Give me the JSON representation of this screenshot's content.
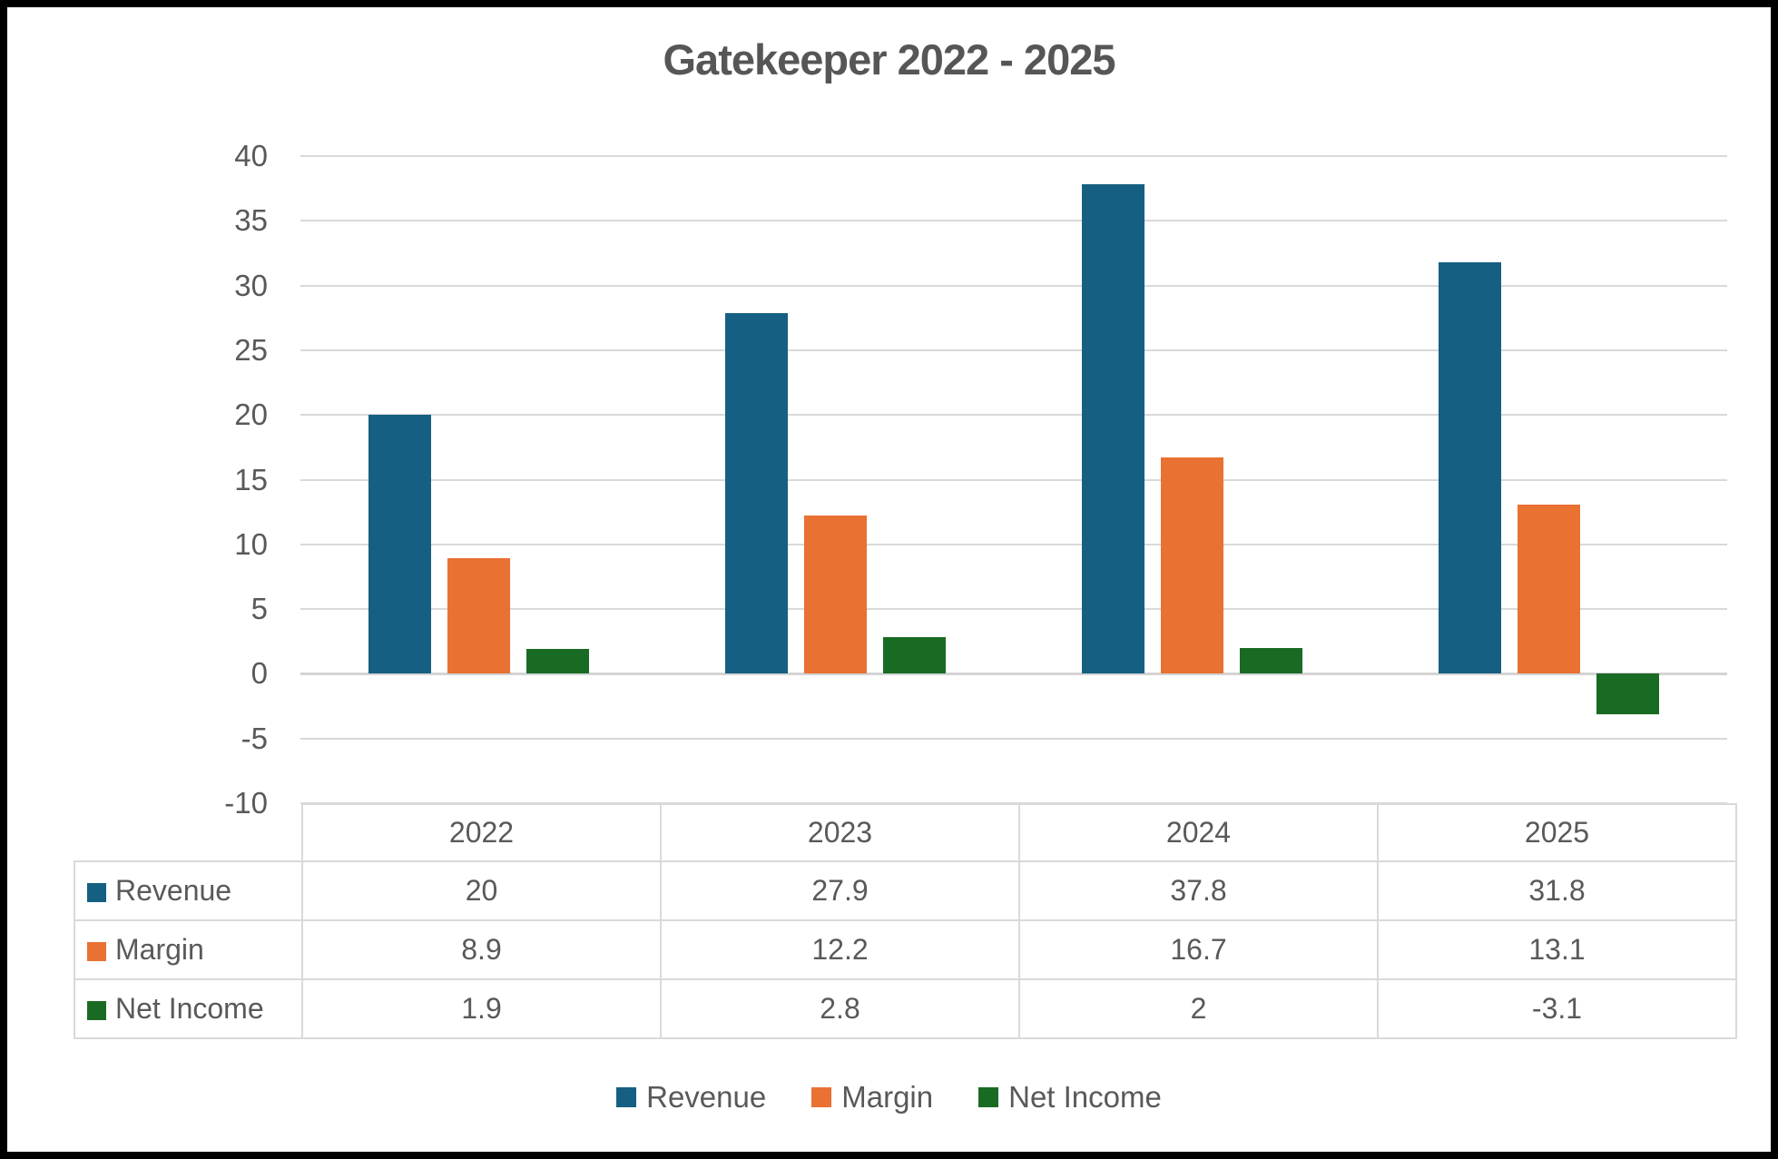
{
  "title": "Gatekeeper 2022 - 2025",
  "colors": {
    "revenue": "#156082",
    "margin": "#E97132",
    "net_income": "#196B24",
    "text": "#595959",
    "gridline": "#D9D9D9",
    "table_border": "#D9D9D9",
    "frame": "#000000",
    "background": "#FFFFFF"
  },
  "chart_data": {
    "type": "bar",
    "title": "Gatekeeper 2022 - 2025",
    "categories": [
      "2022",
      "2023",
      "2024",
      "2025"
    ],
    "series": [
      {
        "name": "Revenue",
        "color": "#156082",
        "values": [
          20,
          27.9,
          37.8,
          31.8
        ]
      },
      {
        "name": "Margin",
        "color": "#E97132",
        "values": [
          8.9,
          12.2,
          16.7,
          13.1
        ]
      },
      {
        "name": "Net Income",
        "color": "#196B24",
        "values": [
          1.9,
          2.8,
          2,
          -3.1
        ]
      }
    ],
    "ylim": [
      -10,
      40
    ],
    "ytick_step": 5,
    "yticks": [
      40,
      35,
      30,
      25,
      20,
      15,
      10,
      5,
      0,
      -5,
      -10
    ],
    "xlabel": "",
    "ylabel": "",
    "grid": true,
    "legend_position": "bottom",
    "data_table_shown": true
  },
  "table": {
    "columns": [
      "2022",
      "2023",
      "2024",
      "2025"
    ],
    "rows": [
      {
        "label": "Revenue",
        "values": [
          "20",
          "27.9",
          "37.8",
          "31.8"
        ]
      },
      {
        "label": "Margin",
        "values": [
          "8.9",
          "12.2",
          "16.7",
          "13.1"
        ]
      },
      {
        "label": "Net Income",
        "values": [
          "1.9",
          "2.8",
          "2",
          "-3.1"
        ]
      }
    ]
  },
  "legend": {
    "items": [
      {
        "label": "Revenue",
        "color": "#156082"
      },
      {
        "label": "Margin",
        "color": "#E97132"
      },
      {
        "label": "Net Income",
        "color": "#196B24"
      }
    ]
  }
}
